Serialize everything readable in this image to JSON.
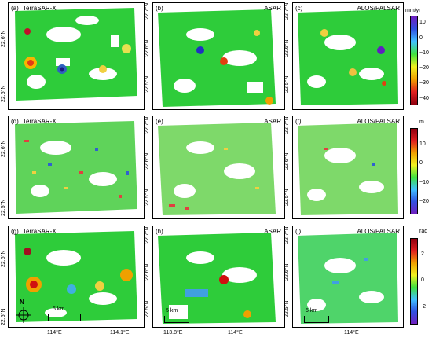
{
  "panels": [
    {
      "label": "(a)",
      "title": "TerraSAR-X",
      "align": "left"
    },
    {
      "label": "(b)",
      "title": "ASAR",
      "align": "right"
    },
    {
      "label": "(c)",
      "title": "ALOS/PALSAR",
      "align": "right"
    },
    {
      "label": "(d)",
      "title": "TerraSAR-X",
      "align": "left"
    },
    {
      "label": "(e)",
      "title": "ASAR",
      "align": "right"
    },
    {
      "label": "(f)",
      "title": "ALOS/PALSAR",
      "align": "right"
    },
    {
      "label": "(g)",
      "title": "TerraSAR-X",
      "align": "left"
    },
    {
      "label": "(h)",
      "title": "ASAR",
      "align": "right"
    },
    {
      "label": "(i)",
      "title": "ALOS/PALSAR",
      "align": "right"
    }
  ],
  "y_ticks": {
    "col1": [
      "22.6°N",
      "22.5°N"
    ],
    "col2": [
      "22.7°N",
      "22.6°N",
      "22.5°N"
    ],
    "col3": [
      "22.7°N",
      "22.6°N",
      "22.5°N"
    ],
    "col1_row3": [
      "22.6°N",
      "22.5°N"
    ],
    "col2_row3": [
      "22.7°N",
      "22.6°N",
      "22.5°N"
    ],
    "col3_row3": [
      "22.7°N",
      "22.6°N",
      "22.5°N"
    ]
  },
  "x_ticks": {
    "col1": [
      "114°E",
      "114.1°E"
    ],
    "col2": [
      "113.8°E",
      "114°E"
    ],
    "col3": [
      "114°E"
    ]
  },
  "colorbars": [
    {
      "unit": "mm/yr",
      "ticks": [
        "10",
        "0",
        "−10",
        "−20",
        "−30",
        "−40"
      ]
    },
    {
      "unit": "m",
      "ticks": [
        "10",
        "0",
        "−10",
        "−20"
      ]
    },
    {
      "unit": "rad",
      "ticks": [
        "2",
        "0",
        "−2"
      ]
    }
  ],
  "scalebar_label": "5 km",
  "north_label": "N"
}
